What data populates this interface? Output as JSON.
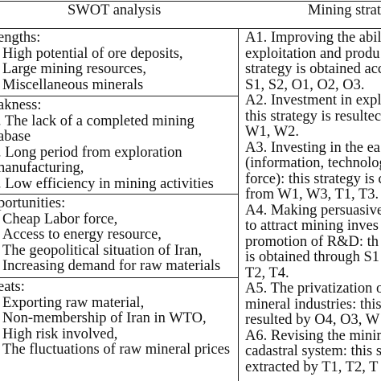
{
  "table": {
    "headers": {
      "swot": "SWOT analysis",
      "mining": "Mining strate"
    },
    "swot": {
      "strengths": {
        "heading": "engths:",
        "lines": [
          "High potential of ore deposits,",
          "Large mining resources,",
          "Miscellaneous minerals"
        ]
      },
      "weakness": {
        "heading": "akness:",
        "lines": [
          ". The lack of a completed mining",
          "abase",
          ". Long period from exploration",
          "nanufacturing,",
          ". Low efficiency in mining activities"
        ]
      },
      "opportunities": {
        "heading": "portunities:",
        "lines": [
          "Cheap Labor force,",
          "Access to energy resource,",
          "The geopolitical situation of Iran,",
          "Increasing demand for raw materials"
        ]
      },
      "threats": {
        "heading": "eats:",
        "lines": [
          "Exporting raw material,",
          "Non-membership of Iran in WTO,",
          "High risk involved,",
          "The fluctuations of raw mineral prices"
        ]
      }
    },
    "strategies": {
      "lines": [
        "A1. Improving the abili",
        "exploitation and produ",
        "strategy is obtained acc",
        "S1, S2, O1, O2, O3.",
        "A2. Investment in explo",
        "this strategy is resultec",
        "W1, W2.",
        "A3. Investing in the ea",
        "(information, technolog",
        "force): this strategy is c",
        "from W1, W3, T1, T3.",
        "A4. Making persuasive",
        "to attract mining inves",
        "promotion of R&D: th",
        "is obtained through S1",
        "T2, T4.",
        "A5. The privatization o",
        "mineral industries: this",
        "resulted by O4, O3, W",
        "A6. Revising the minin",
        "cadastral system: this s",
        "extracted by T1, T2, T"
      ]
    }
  }
}
